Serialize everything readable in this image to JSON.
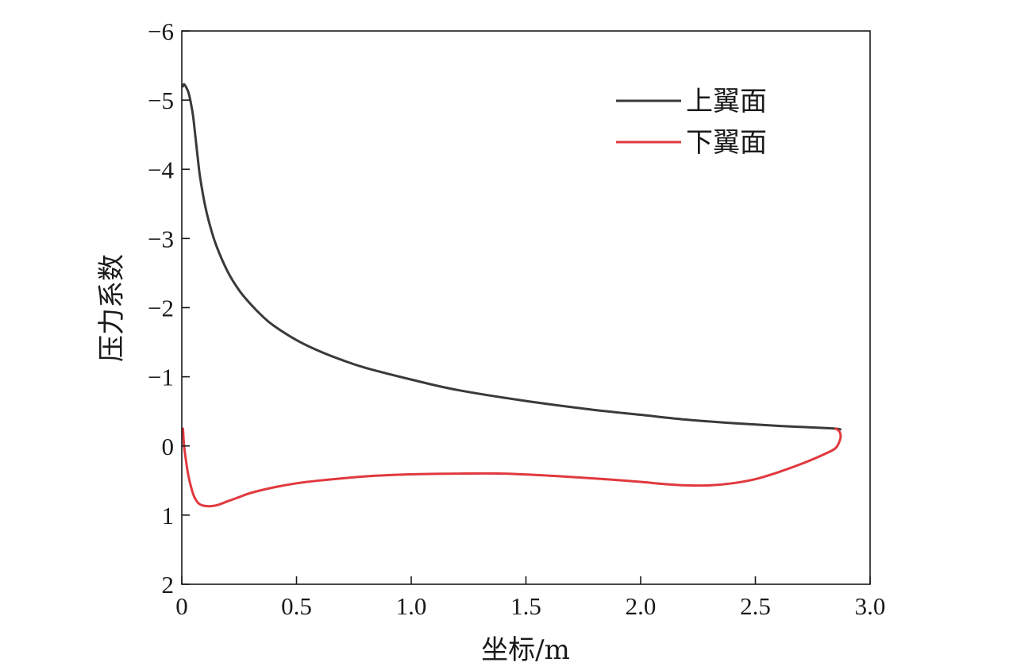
{
  "chart_data": {
    "type": "line",
    "xlabel": "坐标/m",
    "ylabel": "压力系数",
    "xlim": [
      0,
      3.0
    ],
    "ylim": [
      2,
      -6
    ],
    "y_inverted": true,
    "xticks": [
      0,
      0.5,
      1.0,
      1.5,
      2.0,
      2.5,
      3.0
    ],
    "xtick_labels": [
      "0",
      "0.5",
      "1.0",
      "1.5",
      "2.0",
      "2.5",
      "3.0"
    ],
    "yticks": [
      -6,
      -5,
      -4,
      -3,
      -2,
      -1,
      0,
      1,
      2
    ],
    "ytick_labels": [
      "−6",
      "−5",
      "−4",
      "−3",
      "−2",
      "−1",
      "0",
      "1",
      "2"
    ],
    "grid": false,
    "legend_position": "top-right",
    "series": [
      {
        "name": "上翼面",
        "color": "#3a3a3a",
        "x": [
          0.005,
          0.01,
          0.02,
          0.03,
          0.04,
          0.05,
          0.06,
          0.07,
          0.08,
          0.1,
          0.12,
          0.15,
          0.2,
          0.25,
          0.3,
          0.35,
          0.4,
          0.5,
          0.6,
          0.7,
          0.8,
          1.0,
          1.2,
          1.5,
          1.8,
          2.0,
          2.2,
          2.4,
          2.6,
          2.8,
          2.85,
          2.87
        ],
        "y": [
          -5.2,
          -5.23,
          -5.18,
          -5.1,
          -4.95,
          -4.75,
          -4.45,
          -4.15,
          -3.88,
          -3.5,
          -3.22,
          -2.9,
          -2.52,
          -2.25,
          -2.05,
          -1.88,
          -1.74,
          -1.53,
          -1.37,
          -1.24,
          -1.13,
          -0.96,
          -0.81,
          -0.65,
          -0.52,
          -0.45,
          -0.38,
          -0.33,
          -0.29,
          -0.26,
          -0.25,
          -0.24
        ]
      },
      {
        "name": "下翼面",
        "color": "#e0393e",
        "x": [
          0.005,
          0.01,
          0.02,
          0.03,
          0.05,
          0.07,
          0.09,
          0.11,
          0.13,
          0.16,
          0.2,
          0.25,
          0.3,
          0.4,
          0.5,
          0.6,
          0.8,
          1.0,
          1.2,
          1.4,
          1.6,
          1.8,
          2.0,
          2.1,
          2.2,
          2.3,
          2.4,
          2.5,
          2.6,
          2.7,
          2.8,
          2.85,
          2.87,
          2.87,
          2.86,
          2.85
        ],
        "y": [
          -0.25,
          0.0,
          0.25,
          0.45,
          0.7,
          0.82,
          0.86,
          0.87,
          0.87,
          0.85,
          0.8,
          0.74,
          0.68,
          0.6,
          0.54,
          0.5,
          0.44,
          0.41,
          0.4,
          0.4,
          0.43,
          0.47,
          0.52,
          0.55,
          0.57,
          0.57,
          0.54,
          0.48,
          0.38,
          0.26,
          0.12,
          0.03,
          -0.1,
          -0.18,
          -0.23,
          -0.25
        ]
      }
    ]
  }
}
